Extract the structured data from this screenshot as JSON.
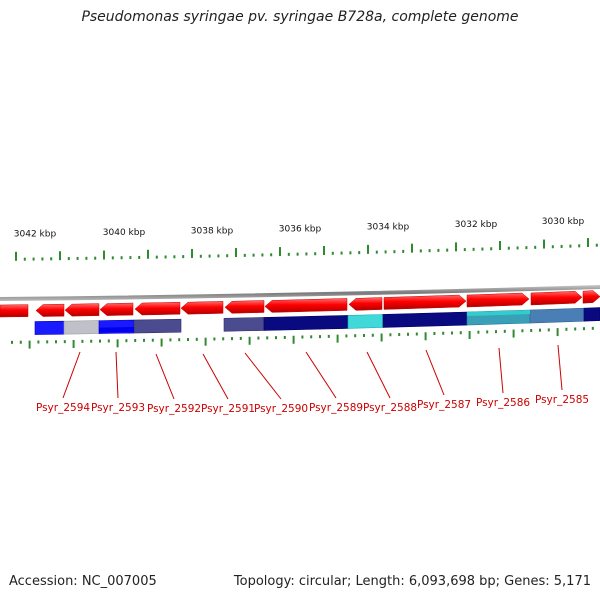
{
  "title": "Pseudomonas syringae pv. syringae B728a, complete genome",
  "footer": {
    "accession": "Accession: NC_007005",
    "summary": "Topology: circular; Length: 6,093,698 bp; Genes: 5,171"
  },
  "colors": {
    "backbone": "#8c8c8c",
    "gene_arrow": "#ff0000",
    "tick": "#2e8b2e",
    "label": "#cc0000"
  },
  "scale_labels": [
    "3042 kbp",
    "3040 kbp",
    "3038 kbp",
    "3036 kbp",
    "3034 kbp",
    "3032 kbp",
    "3030 kbp"
  ],
  "gene_labels": [
    "Psyr_2594",
    "Psyr_2593",
    "Psyr_2592",
    "Psyr_2591",
    "Psyr_2590",
    "Psyr_2589",
    "Psyr_2588",
    "Psyr_2587",
    "Psyr_2586",
    "Psyr_2585"
  ],
  "feature_colors": [
    "blue",
    "silver",
    "blue",
    "slate",
    "none",
    "slate",
    "navy",
    "cyan",
    "navy",
    "teal",
    "steelblue",
    "navy"
  ]
}
